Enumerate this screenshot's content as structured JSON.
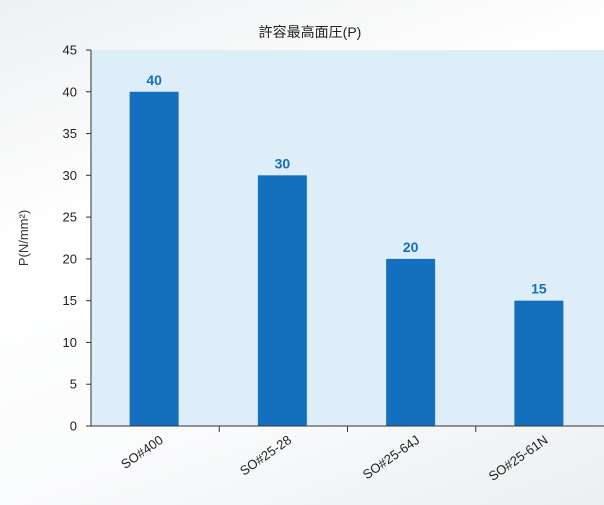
{
  "chart_data": {
    "type": "bar",
    "title": "許容最高面圧(P)",
    "ylabel": "P(N/mm²)",
    "xlabel": "",
    "categories": [
      "SO#400",
      "SO#25-28",
      "SO#25-64J",
      "SO#25-61N"
    ],
    "values": [
      40,
      30,
      20,
      15
    ],
    "ylim": [
      0,
      45
    ],
    "yticks": [
      0,
      5,
      10,
      15,
      20,
      25,
      30,
      35,
      40,
      45
    ],
    "grid": false,
    "colors": {
      "bar": "#1470bf",
      "data_label": "#1470bf",
      "plot_background": "#ddeef8",
      "axis": "#333333"
    }
  }
}
